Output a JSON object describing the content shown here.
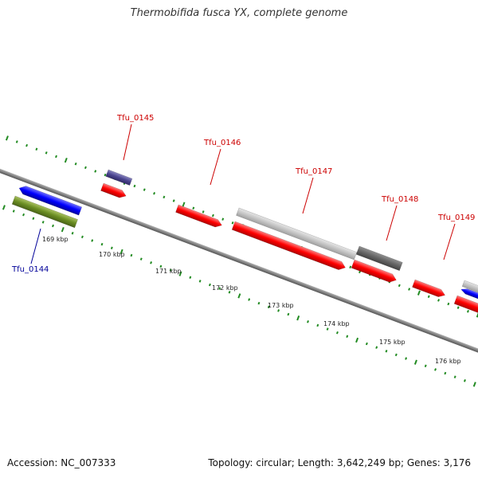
{
  "title": "Thermobifida fusca YX, complete genome",
  "footer": {
    "accession": "Accession: NC_007333",
    "summary": "Topology: circular; Length: 3,642,249 bp; Genes: 3,176"
  },
  "colors": {
    "forward_gene": "#ff0000",
    "reverse_gene": "#0000ff",
    "label_forward": "#cc0000",
    "label_reverse": "#000099",
    "backbone": "#808080",
    "ticks": "#228b22"
  },
  "gene_labels": [
    {
      "name": "Tfu_0144",
      "color": "label_reverse"
    },
    {
      "name": "Tfu_0145",
      "color": "label_forward"
    },
    {
      "name": "Tfu_0146",
      "color": "label_forward"
    },
    {
      "name": "Tfu_0147",
      "color": "label_forward"
    },
    {
      "name": "Tfu_0148",
      "color": "label_forward"
    },
    {
      "name": "Tfu_0149",
      "color": "label_forward"
    }
  ],
  "kbp_ticks": [
    "169 kbp",
    "170 kbp",
    "171 kbp",
    "172 kbp",
    "173 kbp",
    "174 kbp",
    "175 kbp",
    "176 kbp"
  ]
}
